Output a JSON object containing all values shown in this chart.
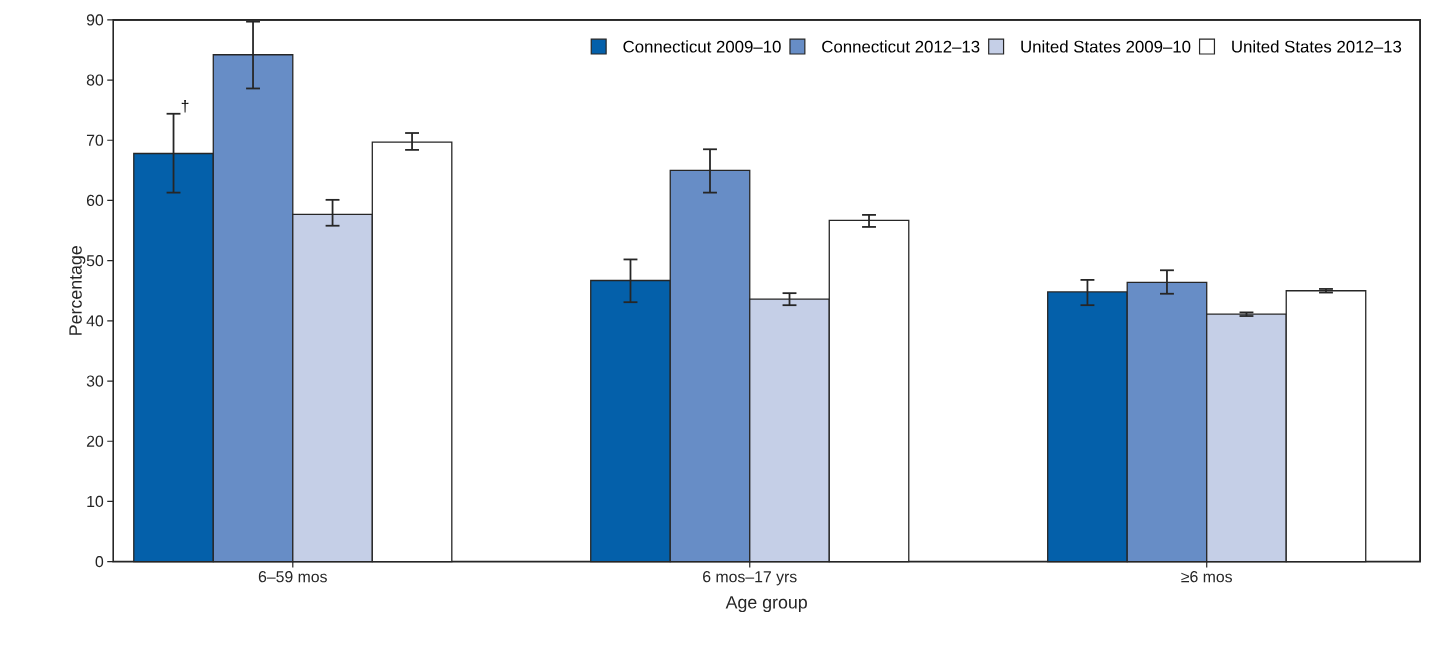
{
  "chart_data": {
    "type": "bar",
    "xlabel": "Age group",
    "ylabel": "Percentage",
    "categories": [
      "6–59 mos",
      "6 mos–17 yrs",
      "≥6 mos"
    ],
    "series": [
      {
        "name": "Connecticut 2009–10",
        "color": "#0460aa",
        "values": [
          67.8,
          46.7,
          44.8
        ],
        "errors": [
          [
            61.3,
            74.4
          ],
          [
            43.1,
            50.2
          ],
          [
            42.6,
            46.8
          ]
        ]
      },
      {
        "name": "Connecticut 2012–13",
        "color": "#678dc6",
        "values": [
          84.2,
          65.0,
          46.4
        ],
        "errors": [
          [
            78.6,
            89.7
          ],
          [
            61.3,
            68.5
          ],
          [
            44.5,
            48.4
          ]
        ]
      },
      {
        "name": "United States 2009–10",
        "color": "#c5cfe7",
        "values": [
          57.7,
          43.6,
          41.1
        ],
        "errors": [
          [
            55.8,
            60.1
          ],
          [
            42.6,
            44.6
          ],
          [
            40.8,
            41.4
          ]
        ]
      },
      {
        "name": "United States 2012–13",
        "color": "#ffffff",
        "values": [
          69.7,
          56.7,
          45.0
        ],
        "errors": [
          [
            68.4,
            71.2
          ],
          [
            55.6,
            57.6
          ],
          [
            44.7,
            45.3
          ]
        ]
      }
    ],
    "annotations": [
      "†"
    ],
    "ylim": [
      0,
      90
    ],
    "yticks": [
      0,
      10,
      20,
      30,
      40,
      50,
      60,
      70,
      80,
      90
    ],
    "legend": "top right",
    "grid": false
  }
}
